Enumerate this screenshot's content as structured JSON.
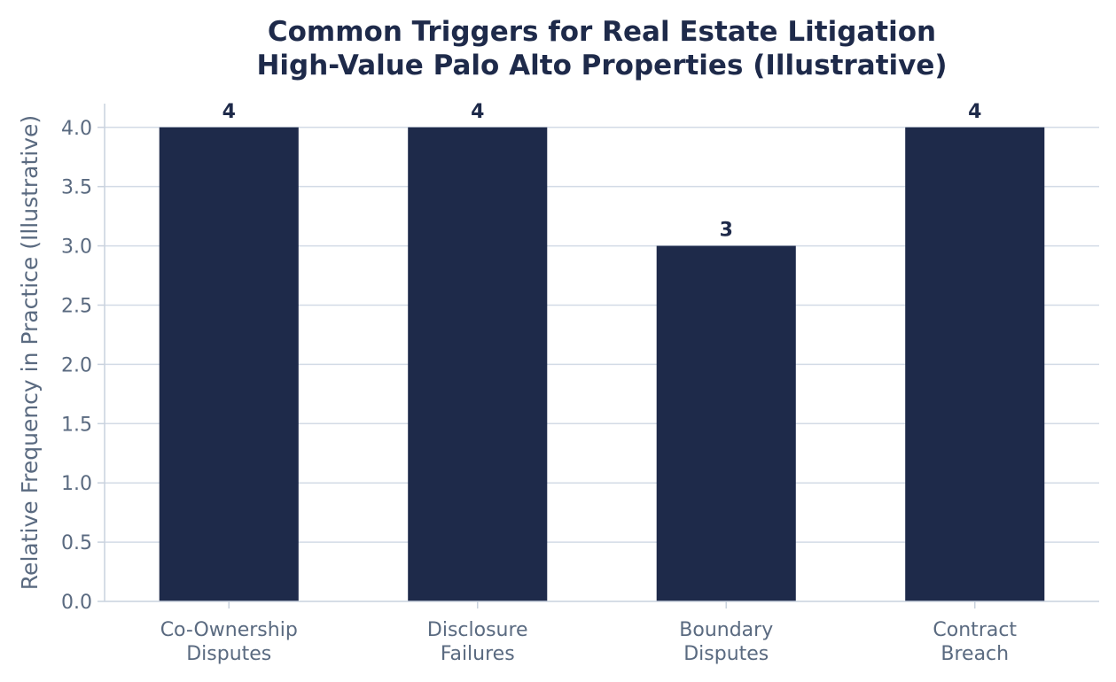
{
  "colors": {
    "bar": "#1e2a4a",
    "title": "#1e2a4a",
    "tick_text": "#5a6a80",
    "grid": "#d3dbe6",
    "axis": "#c9d2de",
    "value_label": "#1e2a4a"
  },
  "chart_data": {
    "type": "bar",
    "title": "Common Triggers for Real Estate Litigation",
    "subtitle": "High-Value Palo Alto Properties (Illustrative)",
    "xlabel": "",
    "ylabel": "Relative Frequency in Practice (Illustrative)",
    "categories": [
      [
        "Co-Ownership",
        "Disputes"
      ],
      [
        "Disclosure",
        "Failures"
      ],
      [
        "Boundary",
        "Disputes"
      ],
      [
        "Contract",
        "Breach"
      ]
    ],
    "values": [
      4,
      4,
      3,
      4
    ],
    "value_labels": [
      "4",
      "4",
      "3",
      "4"
    ],
    "ylim": [
      0,
      4.2
    ],
    "yticks": [
      "0.0",
      "0.5",
      "1.0",
      "1.5",
      "2.0",
      "2.5",
      "3.0",
      "3.5",
      "4.0"
    ],
    "grid": "horizontal"
  }
}
